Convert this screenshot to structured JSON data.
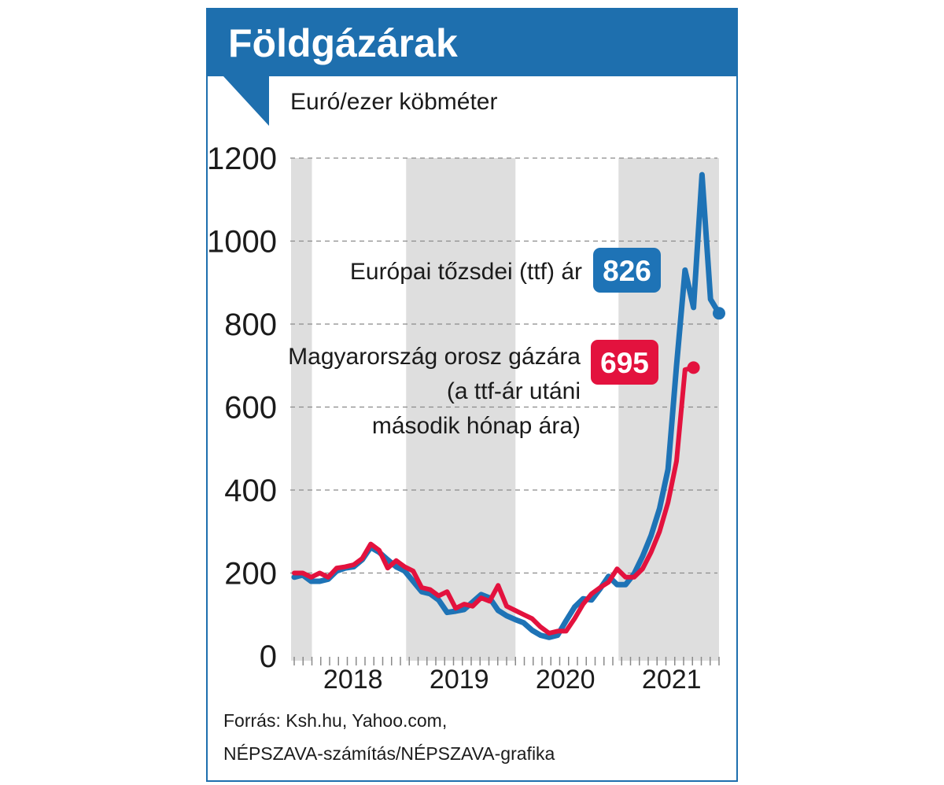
{
  "title": "Földgázárak",
  "unit_label": "Euró/ezer köbméter",
  "source": {
    "line1": "Forrás: Ksh.hu, Yahoo.com,",
    "line2": "NÉPSZAVA-számítás/NÉPSZAVA-grafika"
  },
  "colors": {
    "brand": "#1e6fae",
    "ttf": "#1e73b6",
    "hu": "#e3123e",
    "shade": "#dedede"
  },
  "annotations": {
    "ttf_label": "Európai tőzsdei (ttf) ár",
    "ttf_value": "826",
    "hu_label_line1": "Magyarország orosz gázára",
    "hu_label_line2": "(a ttf-ár utáni",
    "hu_label_line3": "második hónap ára)",
    "hu_value": "695"
  },
  "chart_data": {
    "type": "line",
    "title": "Földgázárak",
    "ylabel": "Euró/ezer köbméter",
    "xlabel": "",
    "ylim": [
      0,
      1200
    ],
    "yticks": [
      0,
      200,
      400,
      600,
      800,
      1000,
      1200
    ],
    "x_start": "2017-12",
    "x_end": "2021-12",
    "year_labels": [
      "2018",
      "2019",
      "2020",
      "2021"
    ],
    "grid": true,
    "series": [
      {
        "name": "Európai tőzsdei (ttf) ár",
        "last_value": 826,
        "values": [
          190,
          195,
          180,
          180,
          185,
          205,
          212,
          215,
          232,
          262,
          250,
          232,
          215,
          205,
          180,
          155,
          150,
          135,
          105,
          108,
          112,
          130,
          148,
          140,
          110,
          97,
          88,
          80,
          62,
          50,
          45,
          50,
          85,
          118,
          138,
          135,
          162,
          192,
          172,
          172,
          198,
          240,
          290,
          355,
          450,
          700,
          930,
          840,
          1160,
          860,
          826
        ]
      },
      {
        "name": "Magyarország orosz gázára",
        "last_value": 695,
        "values": [
          200,
          200,
          190,
          200,
          190,
          212,
          215,
          220,
          235,
          270,
          255,
          212,
          230,
          215,
          205,
          165,
          160,
          145,
          155,
          115,
          125,
          120,
          140,
          132,
          170,
          120,
          110,
          100,
          90,
          70,
          55,
          60,
          60,
          90,
          125,
          150,
          165,
          178,
          210,
          190,
          190,
          210,
          250,
          300,
          370,
          470,
          690,
          695
        ]
      }
    ]
  }
}
